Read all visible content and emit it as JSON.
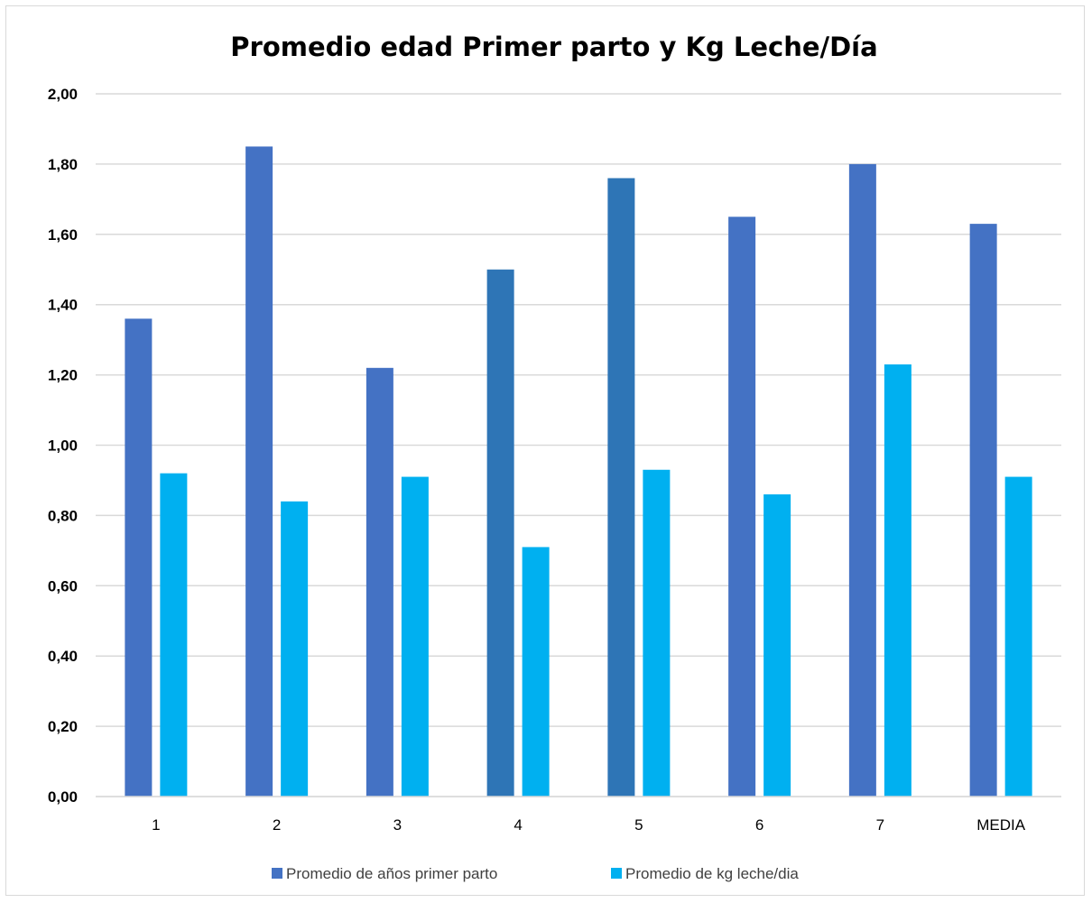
{
  "chart_data": {
    "type": "bar",
    "title": "Promedio edad Primer parto y Kg Leche/Día",
    "xlabel": "",
    "ylabel": "",
    "ylim": [
      0,
      2.0
    ],
    "y_ticks": [
      "0,00",
      "0,20",
      "0,40",
      "0,60",
      "0,80",
      "1,00",
      "1,20",
      "1,40",
      "1,60",
      "1,80",
      "2,00"
    ],
    "categories": [
      "1",
      "2",
      "3",
      "4",
      "5",
      "6",
      "7",
      "MEDIA"
    ],
    "series": [
      {
        "name": "Promedio de años primer parto",
        "color": "#4472C4",
        "point_colors": [
          "#4472C4",
          "#4472C4",
          "#4472C4",
          "#2E75B6",
          "#2E75B6",
          "#4472C4",
          "#4472C4",
          "#4472C4"
        ],
        "values": [
          1.36,
          1.85,
          1.22,
          1.5,
          1.76,
          1.65,
          1.8,
          1.63
        ]
      },
      {
        "name": "Promedio de kg leche/dia",
        "color": "#00B0F0",
        "values": [
          0.92,
          0.84,
          0.91,
          0.71,
          0.93,
          0.86,
          1.23,
          0.91
        ]
      }
    ],
    "grid": true,
    "legend": "bottom",
    "gridline_color": "#D9D9D9"
  }
}
